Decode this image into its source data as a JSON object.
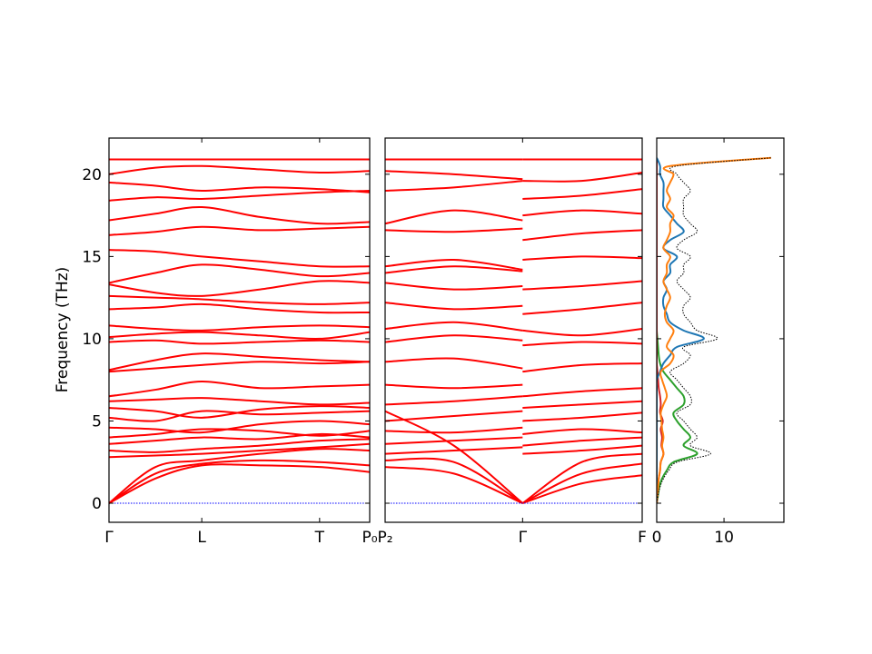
{
  "chart_data": [
    {
      "type": "line",
      "ylabel": "Frequency (THz)",
      "ylim": [
        -1.16,
        22.2
      ],
      "yticks": [
        0,
        5,
        10,
        15,
        20
      ],
      "xlim": [
        0,
        2.81
      ],
      "x": [
        0,
        0.5,
        1,
        1.63,
        2.27,
        2.81
      ],
      "xticks": [
        {
          "value": 0,
          "label": "Γ"
        },
        {
          "value": 1,
          "label": "L"
        },
        {
          "value": 2.27,
          "label": "T"
        },
        {
          "value": 2.81,
          "label": "P₀"
        }
      ],
      "color": "#ff0000",
      "series": [
        {
          "values": [
            0,
            1.5,
            2.3,
            2.3,
            2.2,
            1.9
          ]
        },
        {
          "values": [
            0,
            1.8,
            2.4,
            2.6,
            2.5,
            2.3
          ]
        },
        {
          "values": [
            0,
            2.2,
            2.6,
            3.0,
            3.3,
            3.2
          ]
        },
        {
          "values": [
            2.8,
            2.9,
            3.0,
            3.2,
            3.4,
            3.6
          ]
        },
        {
          "values": [
            3.2,
            3.1,
            3.3,
            3.5,
            3.8,
            3.9
          ]
        },
        {
          "values": [
            3.6,
            3.8,
            4.0,
            3.9,
            4.2,
            4.0
          ]
        },
        {
          "values": [
            4.0,
            4.2,
            4.5,
            4.4,
            4.1,
            4.4
          ]
        },
        {
          "values": [
            4.6,
            4.5,
            4.3,
            4.8,
            5.0,
            4.8
          ]
        },
        {
          "values": [
            5.2,
            5.0,
            5.6,
            5.4,
            5.5,
            5.6
          ]
        },
        {
          "values": [
            5.8,
            5.6,
            5.2,
            5.7,
            5.9,
            5.8
          ]
        },
        {
          "values": [
            6.2,
            6.3,
            6.4,
            6.2,
            6.0,
            6.1
          ]
        },
        {
          "values": [
            6.5,
            6.9,
            7.4,
            7.0,
            7.1,
            7.2
          ]
        },
        {
          "values": [
            8.0,
            8.2,
            8.4,
            8.6,
            8.5,
            8.6
          ]
        },
        {
          "values": [
            8.1,
            8.7,
            9.1,
            8.9,
            8.7,
            8.6
          ]
        },
        {
          "values": [
            9.8,
            9.9,
            9.7,
            9.8,
            9.9,
            9.8
          ]
        },
        {
          "values": [
            10.1,
            10.3,
            10.4,
            10.2,
            10.0,
            10.4
          ]
        },
        {
          "values": [
            10.8,
            10.6,
            10.5,
            10.7,
            10.8,
            10.7
          ]
        },
        {
          "values": [
            11.8,
            11.9,
            12.1,
            11.8,
            11.6,
            11.6
          ]
        },
        {
          "values": [
            12.6,
            12.5,
            12.4,
            12.2,
            12.1,
            12.2
          ]
        },
        {
          "values": [
            13.3,
            12.8,
            12.6,
            13.0,
            13.5,
            13.4
          ]
        },
        {
          "values": [
            13.4,
            14.0,
            14.5,
            14.2,
            13.8,
            14.0
          ]
        },
        {
          "values": [
            15.4,
            15.3,
            15.0,
            14.7,
            14.4,
            14.4
          ]
        },
        {
          "values": [
            16.3,
            16.5,
            16.8,
            16.6,
            16.7,
            16.8
          ]
        },
        {
          "values": [
            17.2,
            17.6,
            18.0,
            17.4,
            17.0,
            17.1
          ]
        },
        {
          "values": [
            18.4,
            18.6,
            18.5,
            18.7,
            18.9,
            19.0
          ]
        },
        {
          "values": [
            19.5,
            19.3,
            19.0,
            19.2,
            19.1,
            18.9
          ]
        },
        {
          "values": [
            20.0,
            20.4,
            20.5,
            20.3,
            20.1,
            20.2
          ]
        },
        {
          "values": [
            20.9,
            20.9,
            20.9,
            20.9,
            20.9,
            20.9
          ]
        },
        {
          "values": [
            0,
            0,
            0,
            0,
            0,
            0
          ],
          "color": "#0000ff",
          "style": "dotted"
        }
      ]
    },
    {
      "type": "line",
      "xlim": [
        0,
        1.87
      ],
      "x": [
        0,
        0.5,
        1,
        1.43,
        1.87
      ],
      "xticks": [
        {
          "value": 0,
          "label": "P₂"
        },
        {
          "value": 1,
          "label": "Γ"
        },
        {
          "value": 1.87,
          "label": "F"
        }
      ],
      "color": "#ff0000",
      "series": [
        {
          "values": [
            2.2,
            1.8,
            0,
            null,
            null
          ]
        },
        {
          "values": [
            2.6,
            2.5,
            0,
            null,
            null
          ]
        },
        {
          "values": [
            5.6,
            3.5,
            0,
            null,
            null
          ]
        },
        {
          "values": [
            3.0,
            3.2,
            3.4,
            null,
            null
          ]
        },
        {
          "values": [
            3.6,
            3.8,
            4.0,
            null,
            null
          ]
        },
        {
          "values": [
            4.4,
            4.3,
            4.6,
            null,
            null
          ]
        },
        {
          "values": [
            5.0,
            5.3,
            5.6,
            null,
            null
          ]
        },
        {
          "values": [
            6.0,
            6.2,
            6.5,
            null,
            null
          ]
        },
        {
          "values": [
            7.2,
            7.0,
            7.2,
            null,
            null
          ]
        },
        {
          "values": [
            8.6,
            8.8,
            8.2,
            null,
            null
          ]
        },
        {
          "values": [
            9.8,
            10.2,
            9.9,
            null,
            null
          ]
        },
        {
          "values": [
            10.6,
            11.0,
            10.5,
            null,
            null
          ]
        },
        {
          "values": [
            12.2,
            11.8,
            12.0,
            null,
            null
          ]
        },
        {
          "values": [
            13.4,
            13.0,
            13.2,
            null,
            null
          ]
        },
        {
          "values": [
            14.0,
            14.4,
            14.1,
            null,
            null
          ]
        },
        {
          "values": [
            14.4,
            14.8,
            14.2,
            null,
            null
          ]
        },
        {
          "values": [
            16.6,
            16.5,
            16.7,
            null,
            null
          ]
        },
        {
          "values": [
            17.0,
            17.8,
            17.2,
            null,
            null
          ]
        },
        {
          "values": [
            19.0,
            19.2,
            19.6,
            null,
            null
          ]
        },
        {
          "values": [
            20.2,
            20.0,
            19.7,
            null,
            null
          ]
        },
        {
          "values": [
            20.9,
            20.9,
            20.9,
            null,
            null
          ]
        },
        {
          "values": [
            null,
            null,
            0,
            1.2,
            1.7
          ]
        },
        {
          "values": [
            null,
            null,
            0,
            1.8,
            2.4
          ]
        },
        {
          "values": [
            null,
            null,
            0,
            2.5,
            3.0
          ]
        },
        {
          "values": [
            null,
            null,
            3.0,
            3.2,
            3.5
          ]
        },
        {
          "values": [
            null,
            null,
            3.5,
            3.8,
            4.0
          ]
        },
        {
          "values": [
            null,
            null,
            4.2,
            4.5,
            4.3
          ]
        },
        {
          "values": [
            null,
            null,
            5.0,
            5.2,
            5.5
          ]
        },
        {
          "values": [
            null,
            null,
            5.8,
            6.0,
            6.2
          ]
        },
        {
          "values": [
            null,
            null,
            6.5,
            6.8,
            7.0
          ]
        },
        {
          "values": [
            null,
            null,
            8.0,
            8.4,
            8.5
          ]
        },
        {
          "values": [
            null,
            null,
            9.6,
            9.8,
            9.7
          ]
        },
        {
          "values": [
            null,
            null,
            10.5,
            10.2,
            10.6
          ]
        },
        {
          "values": [
            null,
            null,
            11.5,
            11.8,
            12.2
          ]
        },
        {
          "values": [
            null,
            null,
            13.0,
            13.2,
            13.5
          ]
        },
        {
          "values": [
            null,
            null,
            14.8,
            15.0,
            14.9
          ]
        },
        {
          "values": [
            null,
            null,
            16.0,
            16.4,
            16.6
          ]
        },
        {
          "values": [
            null,
            null,
            17.5,
            17.8,
            17.6
          ]
        },
        {
          "values": [
            null,
            null,
            18.5,
            18.7,
            19.1
          ]
        },
        {
          "values": [
            null,
            null,
            19.6,
            19.6,
            20.1
          ]
        },
        {
          "values": [
            null,
            null,
            20.9,
            20.9,
            20.9
          ]
        },
        {
          "values": [
            0,
            0,
            0,
            0,
            0
          ],
          "color": "#0000ff",
          "style": "dotted"
        }
      ]
    },
    {
      "type": "line",
      "xlim": [
        0,
        18.9
      ],
      "xticks": [
        0,
        10
      ],
      "y": [
        0,
        0.5,
        1,
        1.5,
        2,
        2.5,
        3,
        3.5,
        4,
        4.5,
        5,
        5.5,
        6,
        6.5,
        7,
        7.5,
        8,
        8.5,
        9,
        9.5,
        10,
        10.5,
        11,
        11.5,
        12,
        12.5,
        13,
        13.5,
        14,
        14.5,
        15,
        15.5,
        16,
        16.5,
        17,
        17.5,
        18,
        18.5,
        19,
        19.5,
        20,
        20.5,
        21
      ],
      "series": [
        {
          "color": "#2ca02c",
          "values": [
            0,
            0.2,
            0.4,
            0.8,
            1.5,
            2.5,
            6,
            4,
            5,
            4,
            3,
            2.5,
            4,
            4,
            3,
            2,
            1,
            0.5,
            0.3,
            0.2,
            0.1,
            0,
            0,
            0,
            0,
            0,
            0,
            0,
            0,
            0,
            0,
            0,
            0,
            0,
            0,
            0,
            0,
            0,
            0,
            0,
            0,
            0,
            0
          ]
        },
        {
          "color": "#d62728",
          "values": [
            0,
            0.1,
            0.2,
            0.3,
            0.5,
            0.6,
            1,
            0.7,
            0.8,
            0.6,
            0.9,
            0.5,
            0.6,
            0.5,
            0.3,
            0.2,
            0.1,
            0,
            0,
            0,
            0,
            0,
            0,
            0,
            0,
            0,
            0,
            0,
            0,
            0,
            0,
            0,
            0,
            0,
            0,
            0,
            0,
            0,
            0,
            0,
            0,
            0,
            0
          ]
        },
        {
          "color": "#1f77b4",
          "values": [
            0,
            0,
            0,
            0,
            0,
            0,
            0,
            0,
            0,
            0,
            0,
            0,
            0,
            0,
            0,
            0,
            0.5,
            1,
            2,
            3,
            7,
            4,
            2,
            1.5,
            1,
            1,
            1.5,
            1,
            2,
            2,
            3,
            1,
            2,
            4,
            3,
            2,
            1,
            1,
            1,
            1,
            0.5,
            0.5,
            0
          ]
        },
        {
          "color": "#ff7f0e",
          "values": [
            0,
            0.1,
            0.2,
            0.3,
            0.5,
            0.6,
            1,
            0.8,
            1,
            0.8,
            0.7,
            0.6,
            1,
            1.5,
            1.2,
            0.8,
            0.6,
            2,
            2.5,
            1.5,
            2,
            2.5,
            1.5,
            1.2,
            1.5,
            2,
            1.5,
            1,
            1.5,
            1.5,
            2,
            1,
            1.5,
            2,
            2,
            2.5,
            1.5,
            2,
            1.5,
            2,
            2.5,
            2,
            17
          ]
        },
        {
          "color": "#000000",
          "style": "dotted",
          "values": [
            0,
            0.2,
            0.5,
            1,
            1.8,
            3,
            8,
            5,
            6,
            5,
            4,
            3,
            5,
            5,
            4,
            3,
            2,
            4,
            5,
            4,
            9,
            6,
            5,
            4,
            4,
            5,
            4,
            3,
            4,
            4,
            5,
            3,
            4,
            6,
            5,
            4,
            4,
            4,
            5,
            4,
            3,
            3,
            17
          ]
        }
      ]
    }
  ]
}
